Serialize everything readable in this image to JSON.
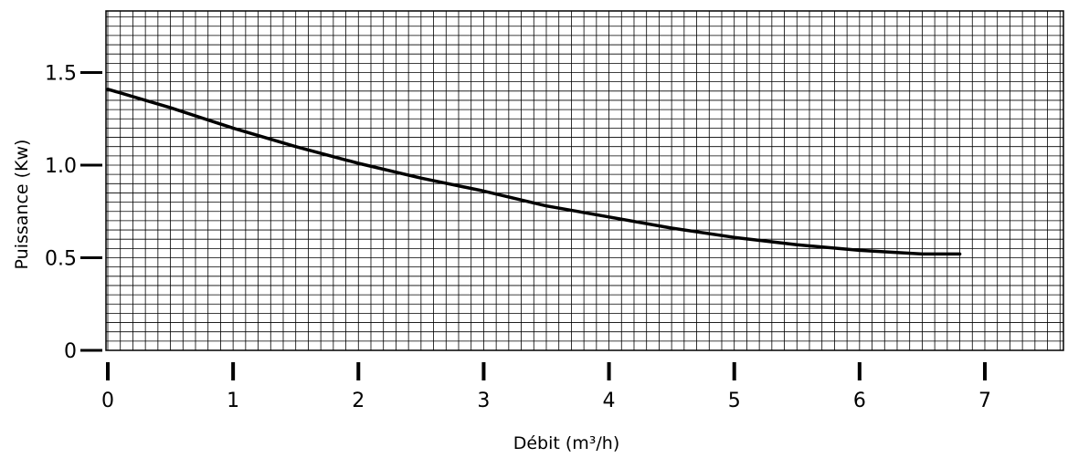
{
  "chart_data": {
    "type": "line",
    "title": "",
    "xlabel": "Débit (m³/h)",
    "ylabel": "Puissance (Kw)",
    "xlim": [
      0,
      7.6
    ],
    "ylim": [
      0,
      1.8
    ],
    "x_ticks": [
      "0",
      "1",
      "2",
      "3",
      "4",
      "5",
      "6",
      "7"
    ],
    "x_tick_values": [
      0,
      1,
      2,
      3,
      4,
      5,
      6,
      7
    ],
    "y_ticks": [
      "0",
      "0.5",
      "1.0",
      "1.5"
    ],
    "y_tick_values": [
      0,
      0.5,
      1.0,
      1.5
    ],
    "grid": true,
    "x_minor_step": 0.1,
    "y_minor_step": 0.05,
    "series": [
      {
        "x": [
          0,
          0.5,
          1.0,
          1.5,
          2.0,
          2.5,
          3.0,
          3.5,
          4.0,
          4.5,
          5.0,
          5.5,
          6.0,
          6.5,
          6.8
        ],
        "values": [
          1.41,
          1.31,
          1.2,
          1.1,
          1.01,
          0.93,
          0.86,
          0.78,
          0.72,
          0.66,
          0.61,
          0.57,
          0.54,
          0.52,
          0.52
        ]
      }
    ]
  }
}
